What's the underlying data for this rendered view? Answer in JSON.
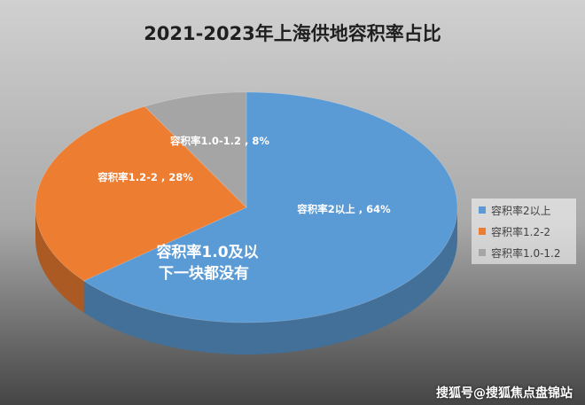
{
  "chart_data": {
    "type": "pie",
    "title": "2021-2023年上海供地容积率占比",
    "categories": [
      "容积率2以上",
      "容积率1.2-2",
      "容积率1.0-1.2"
    ],
    "values": [
      64,
      28,
      8
    ],
    "data_labels": [
      "容积率2以上 , 64%",
      "容积率1.2-2 , 28%",
      "容积率1.0-1.2 , 8%"
    ],
    "colors": [
      "#5b9bd5",
      "#ed7d31",
      "#a5a5a5"
    ],
    "legend_position": "right",
    "annotation": [
      "容积率1.0及以",
      "下一块都没有"
    ],
    "three_d": true
  },
  "colors": {
    "background_top": "#d0d0d0",
    "background_bottom": "#454545"
  },
  "watermark": "搜狐号@搜狐焦点盘锦站"
}
